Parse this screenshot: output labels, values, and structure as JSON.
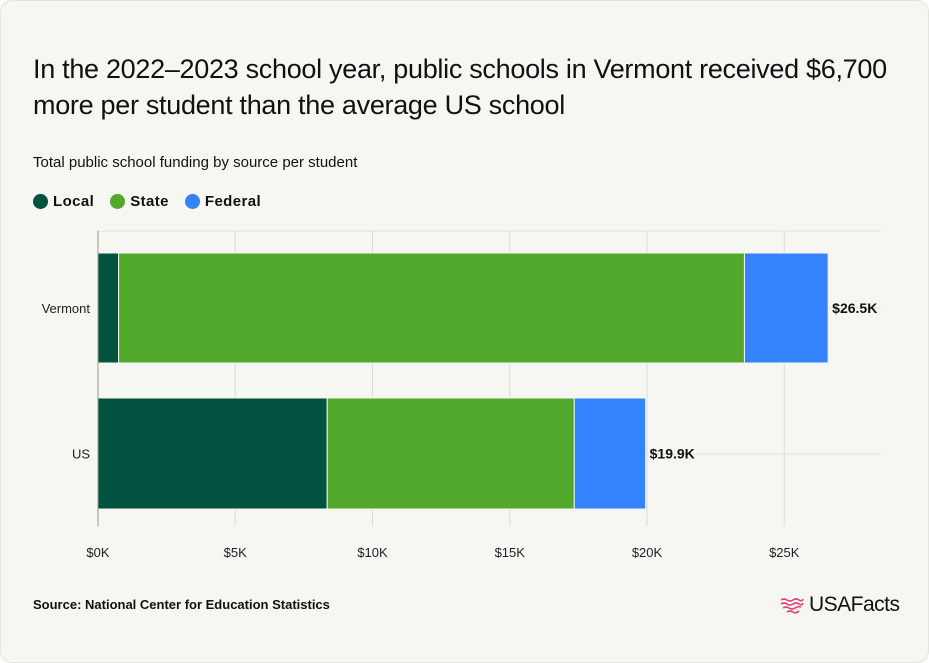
{
  "title": "In the 2022–2023 school year, public schools in Vermont received $6,700 more per student than the average US school",
  "subtitle": "Total public school funding by source per student",
  "legend": [
    {
      "label": "Local",
      "color": "#00513e"
    },
    {
      "label": "State",
      "color": "#52a82a"
    },
    {
      "label": "Federal",
      "color": "#3383fd"
    }
  ],
  "source": "Source: National Center for Education Statistics",
  "logo": {
    "text": "USAFacts",
    "icon": "us-flag-icon",
    "color": "#e0457b"
  },
  "chart_data": {
    "type": "bar",
    "orientation": "horizontal",
    "stacked": true,
    "categories": [
      "Vermont",
      "US"
    ],
    "series": [
      {
        "name": "Local",
        "color": "#00513e",
        "values": [
          750,
          8350
        ]
      },
      {
        "name": "State",
        "color": "#52a82a",
        "values": [
          22800,
          9000
        ]
      },
      {
        "name": "Federal",
        "color": "#3383fd",
        "values": [
          3050,
          2600
        ]
      }
    ],
    "totals_labels": [
      "$26.5K",
      "$19.9K"
    ],
    "xlim": [
      0,
      28500
    ],
    "xticks": [
      0,
      5000,
      10000,
      15000,
      20000,
      25000
    ],
    "xtick_labels": [
      "$0K",
      "$5K",
      "$10K",
      "$15K",
      "$20K",
      "$25K"
    ],
    "grid": true,
    "legend_position": "top-left"
  }
}
